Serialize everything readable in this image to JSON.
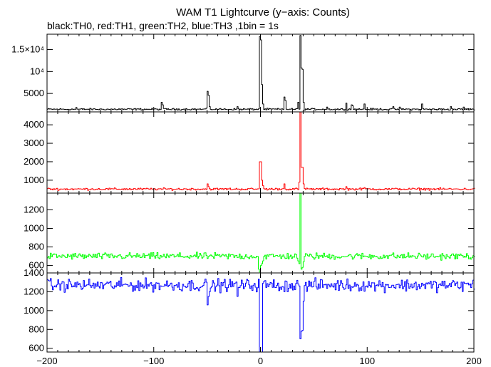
{
  "title": "WAM T1 Lightcurve (y−axis: Counts)",
  "subtitle": "black:TH0, red:TH1, green:TH2, blue:TH3 ,1bin = 1s",
  "chart_data": [
    {
      "type": "line",
      "series": [
        {
          "color": "#000000"
        }
      ],
      "xlim": [
        -200,
        200
      ],
      "ylim": [
        800,
        18500
      ],
      "yticks": [
        5000,
        10000,
        15000
      ],
      "ytick_labels": [
        "5000",
        "10⁴",
        "1.5×10⁴"
      ],
      "baseline": 1400,
      "noise": 120,
      "features": [
        {
          "x": -173,
          "y": 1800
        },
        {
          "x": -93,
          "y": 3000
        },
        {
          "x": -92,
          "y": 2400
        },
        {
          "x": -50,
          "y": 5500
        },
        {
          "x": -49,
          "y": 4600
        },
        {
          "x": -48,
          "y": 2000
        },
        {
          "x": -22,
          "y": 2000
        },
        {
          "x": -1,
          "y": 18000
        },
        {
          "x": 0,
          "y": 17200
        },
        {
          "x": 1,
          "y": 7000
        },
        {
          "x": 2,
          "y": 2600
        },
        {
          "x": 22,
          "y": 4200
        },
        {
          "x": 23,
          "y": 3400
        },
        {
          "x": 35,
          "y": 3000
        },
        {
          "x": 37,
          "y": 18200
        },
        {
          "x": 38,
          "y": 10800
        },
        {
          "x": 39,
          "y": 10500
        },
        {
          "x": 40,
          "y": 3000
        },
        {
          "x": 62,
          "y": 1900
        },
        {
          "x": 80,
          "y": 2800
        },
        {
          "x": 85,
          "y": 2400
        },
        {
          "x": 86,
          "y": 2200
        },
        {
          "x": 97,
          "y": 2600
        },
        {
          "x": 124,
          "y": 2000
        },
        {
          "x": 130,
          "y": 1900
        },
        {
          "x": 151,
          "y": 2600
        },
        {
          "x": 178,
          "y": 2000
        },
        {
          "x": 190,
          "y": 1900
        }
      ],
      "gaps": []
    },
    {
      "type": "line",
      "series": [
        {
          "color": "#ff0000"
        }
      ],
      "xlim": [
        -200,
        200
      ],
      "ylim": [
        300,
        4700
      ],
      "yticks": [
        1000,
        2000,
        3000,
        4000
      ],
      "ytick_labels": [
        "1000",
        "2000",
        "3000",
        "4000"
      ],
      "baseline": 520,
      "noise": 35,
      "features": [
        {
          "x": -50,
          "y": 800
        },
        {
          "x": -49,
          "y": 650
        },
        {
          "x": -1,
          "y": 2000
        },
        {
          "x": 0,
          "y": 2000
        },
        {
          "x": 1,
          "y": 1000
        },
        {
          "x": 2,
          "y": 700
        },
        {
          "x": 22,
          "y": 800
        },
        {
          "x": 36,
          "y": 900
        },
        {
          "x": 37,
          "y": 4700
        },
        {
          "x": 38,
          "y": 1700
        },
        {
          "x": 39,
          "y": 1700
        },
        {
          "x": 40,
          "y": 800
        },
        {
          "x": 80,
          "y": 650
        },
        {
          "x": 97,
          "y": 600
        }
      ],
      "gaps": []
    },
    {
      "type": "line",
      "series": [
        {
          "color": "#00ff00"
        }
      ],
      "xlim": [
        -200,
        200
      ],
      "ylim": [
        520,
        1380
      ],
      "yticks": [
        600,
        800,
        1000,
        1200
      ],
      "ytick_labels": [
        "600",
        "800",
        "1000",
        "1200"
      ],
      "baseline": 700,
      "noise": 22,
      "features": [
        {
          "x": -2,
          "y": 560
        },
        {
          "x": -1,
          "y": 530
        },
        {
          "x": 0,
          "y": 600
        },
        {
          "x": 1,
          "y": 620
        },
        {
          "x": 2,
          "y": 650
        },
        {
          "x": 35,
          "y": 650
        },
        {
          "x": 36,
          "y": 620
        },
        {
          "x": 37,
          "y": 1380
        },
        {
          "x": 38,
          "y": 560
        },
        {
          "x": 39,
          "y": 580
        },
        {
          "x": 40,
          "y": 640
        }
      ],
      "gaps": []
    },
    {
      "type": "line",
      "series": [
        {
          "color": "#0000ff"
        }
      ],
      "xlim": [
        -200,
        200
      ],
      "ylim": [
        560,
        1400
      ],
      "yticks": [
        600,
        800,
        1000,
        1200,
        1400
      ],
      "ytick_labels": [
        "600",
        "800",
        "1000",
        "1200",
        "1400"
      ],
      "baseline": 1270,
      "noise": 40,
      "features": [
        {
          "x": -50,
          "y": 1060
        },
        {
          "x": -49,
          "y": 1150
        },
        {
          "x": -48,
          "y": 1200
        },
        {
          "x": -22,
          "y": 1150
        },
        {
          "x": 22,
          "y": 1200
        },
        {
          "x": 37,
          "y": 700
        },
        {
          "x": 38,
          "y": 780
        },
        {
          "x": 39,
          "y": 790
        },
        {
          "x": 40,
          "y": 1100
        }
      ],
      "gaps": [
        [
          -1,
          1
        ]
      ]
    }
  ],
  "x_axis": {
    "ticks": [
      -200,
      -100,
      0,
      100,
      200
    ],
    "tick_labels": [
      "−200",
      "−100",
      "0",
      "100",
      "200"
    ]
  }
}
